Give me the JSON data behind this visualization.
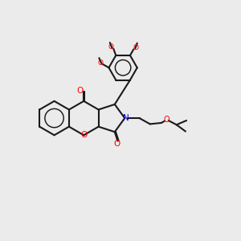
{
  "bg_color": "#ebebeb",
  "bond_color": "#1a1a1a",
  "oxygen_color": "#ff0000",
  "nitrogen_color": "#0000cc",
  "lw": 1.5,
  "figsize": [
    3.0,
    3.0
  ],
  "dpi": 100,
  "xlim": [
    0,
    10
  ],
  "ylim": [
    0,
    10
  ]
}
